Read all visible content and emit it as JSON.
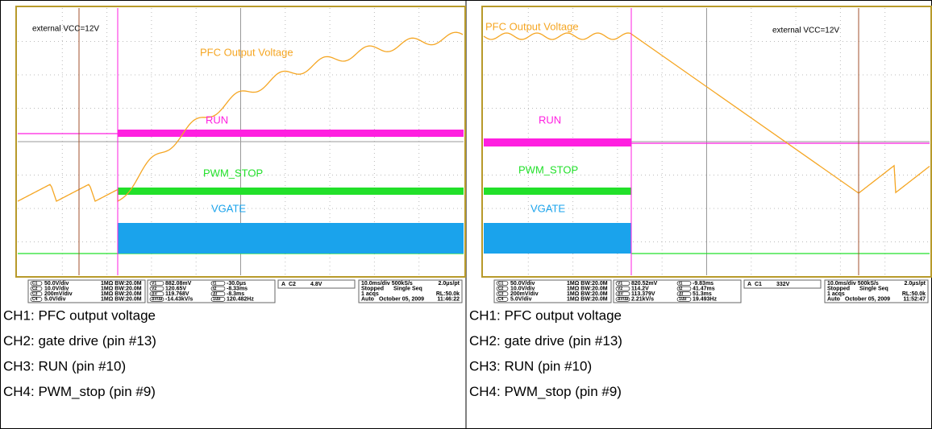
{
  "panels": [
    {
      "annotations": {
        "vcc": "external VCC=12V",
        "pfc": "PFC Output Voltage",
        "run": "RUN",
        "pwm": "PWM_STOP",
        "vgate": "VGATE"
      },
      "channels": [
        {
          "id": "C1",
          "scale": "50.0V/div",
          "input": "1MΩ BW:20.0M"
        },
        {
          "id": "C2",
          "scale": "10.0V/div",
          "input": "1MΩ BW:20.0M"
        },
        {
          "id": "C3",
          "scale": "200mV/div",
          "input": "1MΩ BW:20.0M"
        },
        {
          "id": "C4",
          "scale": "5.0V/div",
          "input": "1MΩ BW:20.0M"
        }
      ],
      "cursors": [
        {
          "name": "V1",
          "value": "882.08mV"
        },
        {
          "name": "V2",
          "value": "120.65V"
        },
        {
          "name": "ΔV",
          "value": "119.768V"
        },
        {
          "name": "ΔV/Δt",
          "value": "-14.43kV/s"
        }
      ],
      "time_cursors": [
        {
          "name": "t1",
          "value": "-30.0μs"
        },
        {
          "name": "t2",
          "value": "-8.33ms"
        },
        {
          "name": "Δt",
          "value": "-8.3ms"
        },
        {
          "name": "1/Δt",
          "value": "120.482Hz"
        }
      ],
      "trigger": {
        "mode": "A",
        "channel": "C2",
        "level": "4.8V"
      },
      "timebase": {
        "rate": "10.0ms/div 500kS/s",
        "resolution": "2.0μs/pt",
        "state": "Stopped",
        "sequence": "Single Seq",
        "acqs": "1 acqs",
        "record": "RL:50.0k",
        "trigger_mode": "Auto",
        "date": "October 05, 2009",
        "time": "11:46:22"
      },
      "captions": [
        "CH1: PFC output voltage",
        "CH2: gate drive (pin #13)",
        "CH3: RUN (pin #10)",
        "CH4: PWM_stop (pin #9)"
      ]
    },
    {
      "annotations": {
        "vcc": "external VCC=12V",
        "pfc": "PFC Output Voltage",
        "run": "RUN",
        "pwm": "PWM_STOP",
        "vgate": "VGATE"
      },
      "channels": [
        {
          "id": "C1",
          "scale": "50.0V/div",
          "input": "1MΩ BW:20.0M"
        },
        {
          "id": "C2",
          "scale": "10.0V/div",
          "input": "1MΩ BW:20.0M"
        },
        {
          "id": "C3",
          "scale": "200mV/div",
          "input": "1MΩ BW:20.0M"
        },
        {
          "id": "C4",
          "scale": "5.0V/div",
          "input": "1MΩ BW:20.0M"
        }
      ],
      "cursors": [
        {
          "name": "V1",
          "value": "820.52mV"
        },
        {
          "name": "V2",
          "value": "114.2V"
        },
        {
          "name": "ΔV",
          "value": "113.379V"
        },
        {
          "name": "ΔV/Δt",
          "value": "2.21kV/s"
        }
      ],
      "time_cursors": [
        {
          "name": "t1",
          "value": "-9.83ms"
        },
        {
          "name": "t2",
          "value": "41.47ms"
        },
        {
          "name": "Δt",
          "value": "51.3ms"
        },
        {
          "name": "1/Δt",
          "value": "19.493Hz"
        }
      ],
      "trigger": {
        "mode": "A",
        "channel": "C1",
        "level": "332V"
      },
      "timebase": {
        "rate": "10.0ms/div 500kS/s",
        "resolution": "2.0μs/pt",
        "state": "Stopped",
        "sequence": "Single Seq",
        "acqs": "1 acqs",
        "record": "RL:50.0k",
        "trigger_mode": "Auto",
        "date": "October 05, 2009",
        "time": "11:52:47"
      },
      "captions": [
        "CH1: PFC output voltage",
        "CH2: gate drive (pin #13)",
        "CH3: RUN (pin #10)",
        "CH4: PWM_stop (pin #9)"
      ]
    }
  ]
}
